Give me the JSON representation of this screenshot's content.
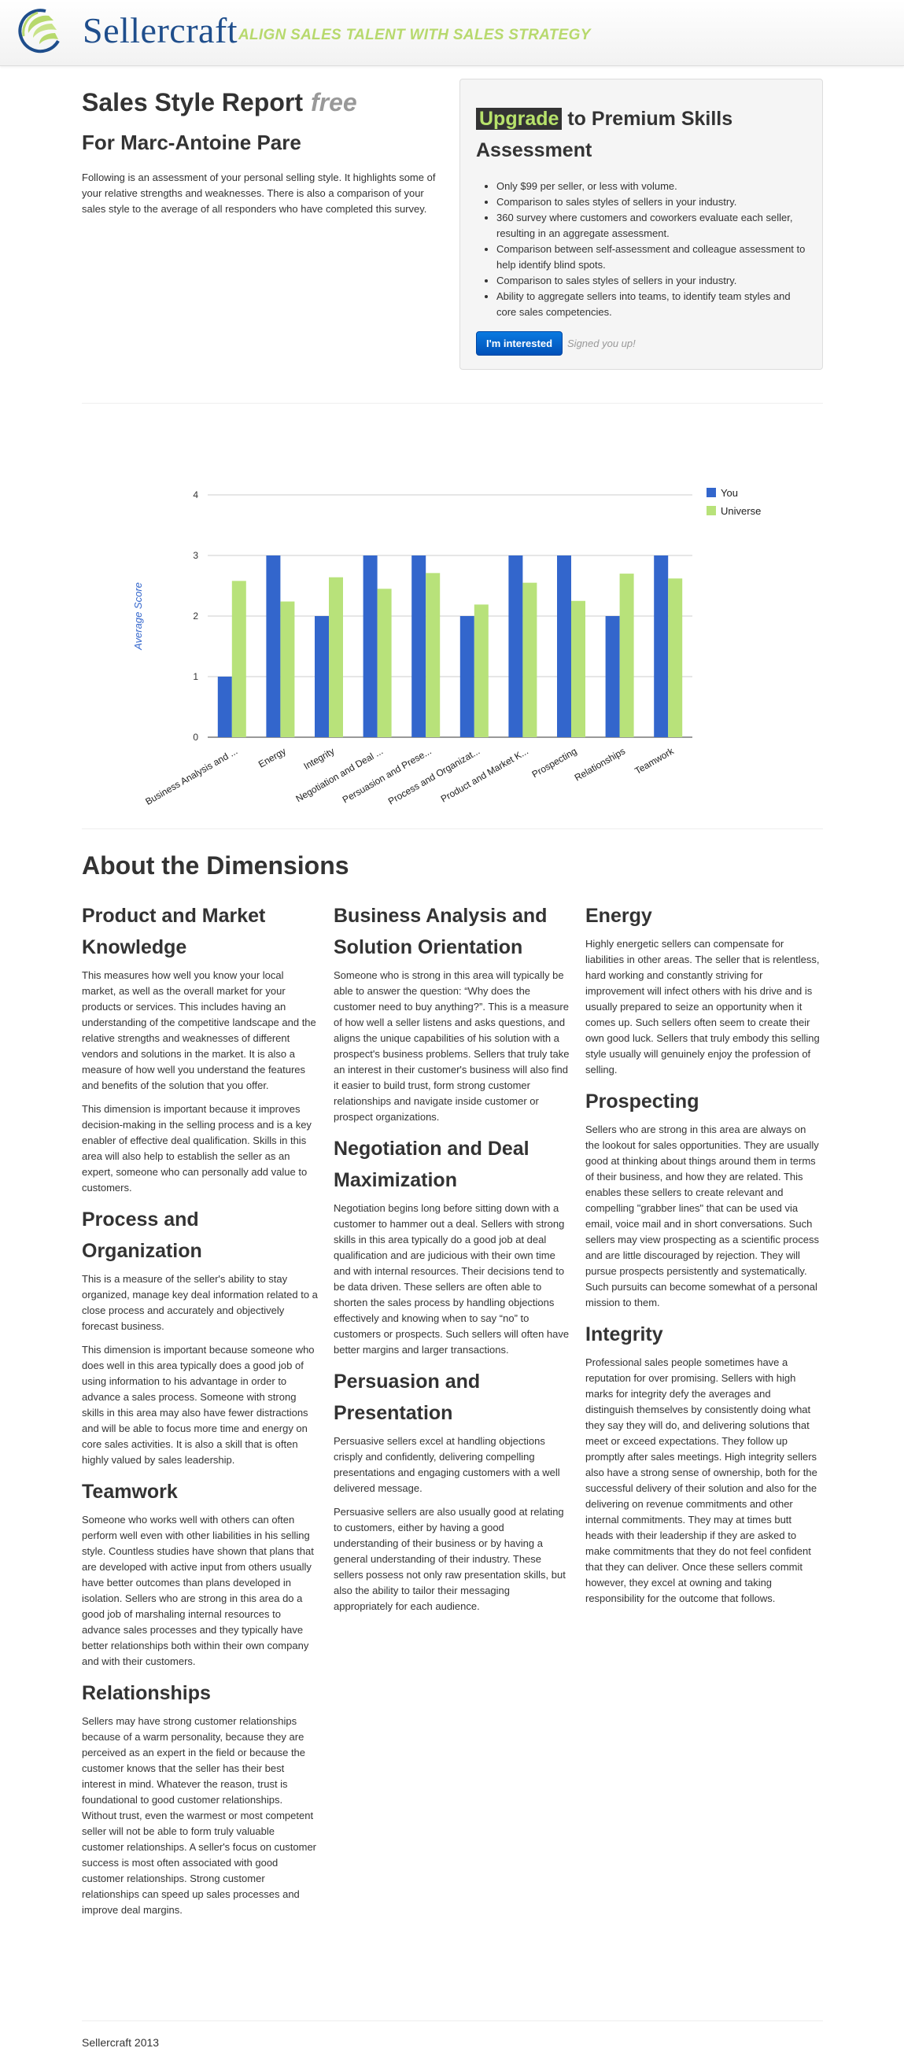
{
  "header": {
    "brand": "Sellercraft",
    "tagline": "ALIGN SALES TALENT WITH SALES STRATEGY",
    "logo_icon": "sellercraft-swirl-logo-icon"
  },
  "intro": {
    "title": "Sales Style Report",
    "title_tag": "free",
    "for_line": "For Marc-Antoine Pare",
    "text": "Following is an assessment of your personal selling style. It highlights some of your relative strengths and weaknesses. There is also a comparison of your sales style to the average of all responders who have completed this survey."
  },
  "upgrade": {
    "highlight": "Upgrade",
    "heading_rest": " to Premium Skills Assessment",
    "items": [
      "Only $99 per seller, or less with volume.",
      "Comparison to sales styles of sellers in your industry.",
      "360 survey where customers and coworkers evaluate each seller, resulting in an aggregate assessment.",
      "Comparison between self-assessment and colleague assessment to help identify blind spots.",
      "Comparison to sales styles of sellers in your industry.",
      "Ability to aggregate sellers into teams, to identify team styles and core sales competencies."
    ],
    "button_label": "I'm interested",
    "signed_text": "Signed you up!"
  },
  "chart_data": {
    "type": "bar",
    "categories": [
      "Business Analysis and ...",
      "Energy",
      "Integrity",
      "Negotiation and Deal ...",
      "Persuasion and Prese...",
      "Process and Organizat...",
      "Product and Market K...",
      "Prospecting",
      "Relationships",
      "Teamwork"
    ],
    "series": [
      {
        "name": "You",
        "color": "#3366cc",
        "values": [
          1,
          3,
          2,
          3,
          3,
          2,
          3,
          3,
          2,
          3
        ]
      },
      {
        "name": "Universe",
        "color": "#b8e27a",
        "values": [
          2.58,
          2.24,
          2.64,
          2.45,
          2.71,
          2.19,
          2.55,
          2.25,
          2.7,
          2.62
        ]
      }
    ],
    "ylabel": "Average Score",
    "ylim": [
      0,
      4
    ],
    "yticks": [
      "0",
      "1",
      "2",
      "3",
      "4"
    ],
    "grid": true,
    "legend": "top-right"
  },
  "about": {
    "title": "About the Dimensions",
    "columns": [
      [
        {
          "name": "Product and Market Knowledge",
          "paragraphs": [
            "This measures how well you know your local market, as well as the overall market for your products or services. This includes having an understanding of the competitive landscape and the relative strengths and weaknesses of different vendors and solutions in the market. It is also a measure of how well you understand the features and benefits of the solution that you offer.",
            "This dimension is important because it improves decision-making in the selling process and is a key enabler of effective deal qualification. Skills in this area will also help to establish the seller as an expert, someone who can personally add value to customers."
          ]
        },
        {
          "name": "Process and Organization",
          "paragraphs": [
            "This is a measure of the seller's ability to stay organized, manage key deal information related to a close process and accurately and objectively forecast business.",
            "This dimension is important because someone who does well in this area typically does a good job of using information to his advantage in order to advance a sales process. Someone with strong skills in this area may also have fewer distractions and will be able to focus more time and energy on core sales activities. It is also a skill that is often highly valued by sales leadership."
          ]
        },
        {
          "name": "Teamwork",
          "paragraphs": [
            "Someone who works well with others can often perform well even with other liabilities in his selling style. Countless studies have shown that plans that are developed with active input from others usually have better outcomes than plans developed in isolation. Sellers who are strong in this area do a good job of marshaling internal resources to advance sales processes and they typically have better relationships both within their own company and with their customers."
          ]
        },
        {
          "name": "Relationships",
          "paragraphs": [
            "Sellers may have strong customer relationships because of a warm personality, because they are perceived as an expert in the field or because the customer knows that the seller has their best interest in mind. Whatever the reason, trust is foundational to good customer relationships. Without trust, even the warmest or most competent seller will not be able to form truly valuable customer relationships. A seller's focus on customer success is most often associated with good customer relationships. Strong customer relationships can speed up sales processes and improve deal margins."
          ]
        }
      ],
      [
        {
          "name": "Business Analysis and Solution Orientation",
          "paragraphs": [
            "Someone who is strong in this area will typically be able to answer the question: “Why does the customer need to buy anything?”. This is a measure of how well a seller listens and asks questions, and aligns the unique capabilities of his solution with a prospect's business problems. Sellers that truly take an interest in their customer's business will also find it easier to build trust, form strong customer relationships and navigate inside customer or prospect organizations."
          ]
        },
        {
          "name": "Negotiation and Deal Maximization",
          "paragraphs": [
            "Negotiation begins long before sitting down with a customer to hammer out a deal. Sellers with strong skills in this area typically do a good job at deal qualification and are judicious with their own time and with internal resources. Their decisions tend to be data driven. These sellers are often able to shorten the sales process by handling objections effectively and knowing when to say “no” to customers or prospects. Such sellers will often have better margins and larger transactions."
          ]
        },
        {
          "name": "Persuasion and Presentation",
          "paragraphs": [
            "Persuasive sellers excel at handling objections crisply and confidently, delivering compelling presentations and engaging customers with a well delivered message.",
            "Persuasive sellers are also usually good at relating to customers, either by having a good understanding of their business or by having a general understanding of their industry. These sellers possess not only raw presentation skills, but also the ability to tailor their messaging appropriately for each audience."
          ]
        }
      ],
      [
        {
          "name": "Energy",
          "paragraphs": [
            "Highly energetic sellers can compensate for liabilities in other areas. The seller that is relentless, hard working and constantly striving for improvement will infect others with his drive and is usually prepared to seize an opportunity when it comes up. Such sellers often seem to create their own good luck. Sellers that truly embody this selling style usually will genuinely enjoy the profession of selling."
          ]
        },
        {
          "name": "Prospecting",
          "paragraphs": [
            "Sellers who are strong in this area are always on the lookout for sales opportunities. They are usually good at thinking about things around them in terms of their business, and how they are related. This enables these sellers to create relevant and compelling \"grabber lines\" that can be used via email, voice mail and in short conversations. Such sellers may view prospecting as a scientific process and are little discouraged by rejection. They will pursue prospects persistently and systematically. Such pursuits can become somewhat of a personal mission to them."
          ]
        },
        {
          "name": "Integrity",
          "paragraphs": [
            "Professional sales people sometimes have a reputation for over promising. Sellers with high marks for integrity defy the averages and distinguish themselves by consistently doing what they say they will do, and delivering solutions that meet or exceed expectations. They follow up promptly after sales meetings. High integrity sellers also have a strong sense of ownership, both for the successful delivery of their solution and also for the delivering on revenue commitments and other internal commitments. They may at times butt heads with their leadership if they are asked to make commitments that they do not feel confident that they can deliver. Once these sellers commit however, they excel at owning and taking responsibility for the outcome that follows."
          ]
        }
      ]
    ]
  },
  "footer": {
    "text": "Sellercraft 2013"
  }
}
